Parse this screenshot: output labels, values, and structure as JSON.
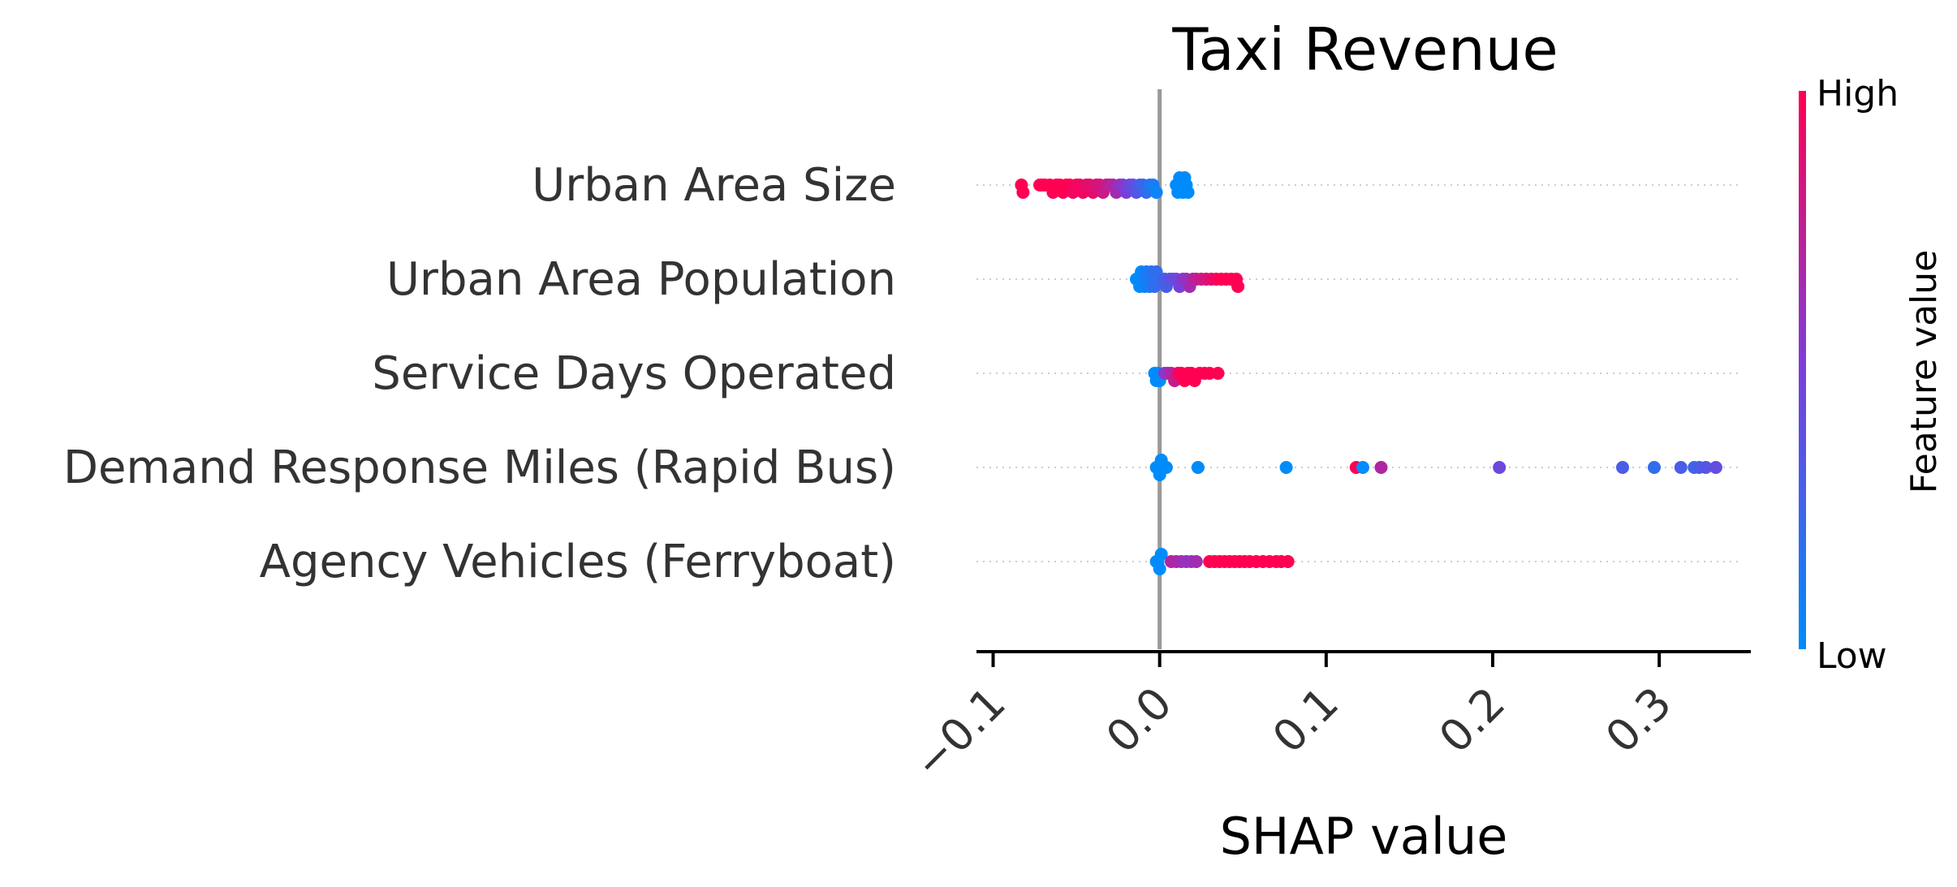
{
  "chart_data": {
    "type": "scatter",
    "subtype": "shap-beeswarm",
    "title": "Taxi Revenue",
    "xlabel": "SHAP value",
    "xlim": [
      -0.11,
      0.355
    ],
    "xticks": [
      -0.1,
      0.0,
      0.1,
      0.2,
      0.3
    ],
    "xtick_labels": [
      "−0.1",
      "0.0",
      "0.1",
      "0.2",
      "0.3"
    ],
    "colorbar": {
      "title": "Feature value",
      "high_label": "High",
      "low_label": "Low",
      "low_color": "#008bfb",
      "high_color": "#ff0052"
    },
    "zero_line_color": "#999999",
    "features": [
      {
        "name": "Urban Area Size",
        "points": [
          {
            "x": -0.083,
            "f": 1.0
          },
          {
            "x": -0.082,
            "f": 1.0
          },
          {
            "x": -0.072,
            "f": 1.0
          },
          {
            "x": -0.071,
            "f": 1.0
          },
          {
            "x": -0.069,
            "f": 1.0
          },
          {
            "x": -0.066,
            "f": 1.0
          },
          {
            "x": -0.064,
            "f": 1.0
          },
          {
            "x": -0.062,
            "f": 1.0
          },
          {
            "x": -0.06,
            "f": 1.0
          },
          {
            "x": -0.058,
            "f": 1.0
          },
          {
            "x": -0.056,
            "f": 1.0
          },
          {
            "x": -0.054,
            "f": 1.0
          },
          {
            "x": -0.052,
            "f": 0.95
          },
          {
            "x": -0.05,
            "f": 0.95
          },
          {
            "x": -0.048,
            "f": 0.95
          },
          {
            "x": -0.046,
            "f": 0.95
          },
          {
            "x": -0.044,
            "f": 0.9
          },
          {
            "x": -0.042,
            "f": 0.9
          },
          {
            "x": -0.04,
            "f": 0.9
          },
          {
            "x": -0.038,
            "f": 0.85
          },
          {
            "x": -0.036,
            "f": 0.85
          },
          {
            "x": -0.034,
            "f": 0.8
          },
          {
            "x": -0.032,
            "f": 0.8
          },
          {
            "x": -0.03,
            "f": 0.75
          },
          {
            "x": -0.028,
            "f": 0.7
          },
          {
            "x": -0.026,
            "f": 0.65
          },
          {
            "x": -0.024,
            "f": 0.6
          },
          {
            "x": -0.022,
            "f": 0.55
          },
          {
            "x": -0.02,
            "f": 0.5
          },
          {
            "x": -0.018,
            "f": 0.45
          },
          {
            "x": -0.016,
            "f": 0.4
          },
          {
            "x": -0.014,
            "f": 0.35
          },
          {
            "x": -0.012,
            "f": 0.3
          },
          {
            "x": -0.01,
            "f": 0.25
          },
          {
            "x": -0.008,
            "f": 0.2
          },
          {
            "x": -0.006,
            "f": 0.15
          },
          {
            "x": -0.004,
            "f": 0.1
          },
          {
            "x": -0.002,
            "f": 0.05
          },
          {
            "x": 0.01,
            "f": 0.0
          },
          {
            "x": 0.011,
            "f": 0.0
          },
          {
            "x": 0.012,
            "f": 0.0
          },
          {
            "x": 0.013,
            "f": 0.0
          },
          {
            "x": 0.014,
            "f": 0.0
          },
          {
            "x": 0.015,
            "f": 0.0
          },
          {
            "x": 0.016,
            "f": 0.0
          },
          {
            "x": 0.017,
            "f": 0.0
          }
        ]
      },
      {
        "name": "Urban Area Population",
        "points": [
          {
            "x": -0.014,
            "f": 0.0
          },
          {
            "x": -0.013,
            "f": 0.0
          },
          {
            "x": -0.012,
            "f": 0.0
          },
          {
            "x": -0.011,
            "f": 0.0
          },
          {
            "x": -0.01,
            "f": 0.05
          },
          {
            "x": -0.009,
            "f": 0.05
          },
          {
            "x": -0.008,
            "f": 0.1
          },
          {
            "x": -0.007,
            "f": 0.1
          },
          {
            "x": -0.006,
            "f": 0.1
          },
          {
            "x": -0.005,
            "f": 0.15
          },
          {
            "x": -0.004,
            "f": 0.15
          },
          {
            "x": -0.003,
            "f": 0.2
          },
          {
            "x": -0.002,
            "f": 0.2
          },
          {
            "x": 0.003,
            "f": 0.3
          },
          {
            "x": 0.004,
            "f": 0.3
          },
          {
            "x": 0.006,
            "f": 0.35
          },
          {
            "x": 0.008,
            "f": 0.4
          },
          {
            "x": 0.01,
            "f": 0.45
          },
          {
            "x": 0.012,
            "f": 0.5
          },
          {
            "x": 0.014,
            "f": 0.55
          },
          {
            "x": 0.016,
            "f": 0.6
          },
          {
            "x": 0.018,
            "f": 0.65
          },
          {
            "x": 0.02,
            "f": 0.7
          },
          {
            "x": 0.022,
            "f": 0.75
          },
          {
            "x": 0.025,
            "f": 0.8
          },
          {
            "x": 0.028,
            "f": 0.85
          },
          {
            "x": 0.031,
            "f": 0.9
          },
          {
            "x": 0.034,
            "f": 0.95
          },
          {
            "x": 0.037,
            "f": 1.0
          },
          {
            "x": 0.04,
            "f": 1.0
          },
          {
            "x": 0.043,
            "f": 1.0
          },
          {
            "x": 0.046,
            "f": 1.0
          },
          {
            "x": 0.047,
            "f": 1.0
          }
        ]
      },
      {
        "name": "Service Days Operated",
        "points": [
          {
            "x": -0.003,
            "f": 0.0
          },
          {
            "x": -0.002,
            "f": 0.0
          },
          {
            "x": -0.001,
            "f": 0.0
          },
          {
            "x": 0.0,
            "f": 0.0
          },
          {
            "x": 0.003,
            "f": 0.55
          },
          {
            "x": 0.005,
            "f": 0.6
          },
          {
            "x": 0.007,
            "f": 0.7
          },
          {
            "x": 0.009,
            "f": 0.8
          },
          {
            "x": 0.011,
            "f": 0.9
          },
          {
            "x": 0.013,
            "f": 1.0
          },
          {
            "x": 0.015,
            "f": 1.0
          },
          {
            "x": 0.017,
            "f": 1.0
          },
          {
            "x": 0.019,
            "f": 1.0
          },
          {
            "x": 0.021,
            "f": 1.0
          },
          {
            "x": 0.024,
            "f": 1.0
          },
          {
            "x": 0.027,
            "f": 1.0
          },
          {
            "x": 0.03,
            "f": 1.0
          },
          {
            "x": 0.035,
            "f": 1.0
          }
        ]
      },
      {
        "name": "Demand Response Miles (Rapid Bus)",
        "points": [
          {
            "x": -0.002,
            "f": 0.0
          },
          {
            "x": -0.001,
            "f": 0.0
          },
          {
            "x": 0.0,
            "f": 0.0
          },
          {
            "x": 0.001,
            "f": 0.0
          },
          {
            "x": 0.004,
            "f": 0.0
          },
          {
            "x": 0.023,
            "f": 0.0
          },
          {
            "x": 0.076,
            "f": 0.0
          },
          {
            "x": 0.118,
            "f": 1.0
          },
          {
            "x": 0.122,
            "f": 0.0
          },
          {
            "x": 0.133,
            "f": 0.7
          },
          {
            "x": 0.204,
            "f": 0.45
          },
          {
            "x": 0.278,
            "f": 0.3
          },
          {
            "x": 0.297,
            "f": 0.2
          },
          {
            "x": 0.313,
            "f": 0.3
          },
          {
            "x": 0.321,
            "f": 0.25
          },
          {
            "x": 0.324,
            "f": 0.3
          },
          {
            "x": 0.328,
            "f": 0.35
          },
          {
            "x": 0.334,
            "f": 0.4
          }
        ]
      },
      {
        "name": "Agency Vehicles (Ferryboat)",
        "points": [
          {
            "x": -0.002,
            "f": 0.0
          },
          {
            "x": -0.001,
            "f": 0.0
          },
          {
            "x": 0.0,
            "f": 0.0
          },
          {
            "x": 0.001,
            "f": 0.0
          },
          {
            "x": 0.007,
            "f": 0.7
          },
          {
            "x": 0.01,
            "f": 0.7
          },
          {
            "x": 0.013,
            "f": 0.65
          },
          {
            "x": 0.016,
            "f": 0.6
          },
          {
            "x": 0.019,
            "f": 0.6
          },
          {
            "x": 0.022,
            "f": 0.65
          },
          {
            "x": 0.03,
            "f": 1.0
          },
          {
            "x": 0.033,
            "f": 1.0
          },
          {
            "x": 0.036,
            "f": 1.0
          },
          {
            "x": 0.039,
            "f": 1.0
          },
          {
            "x": 0.042,
            "f": 1.0
          },
          {
            "x": 0.045,
            "f": 1.0
          },
          {
            "x": 0.048,
            "f": 1.0
          },
          {
            "x": 0.051,
            "f": 1.0
          },
          {
            "x": 0.054,
            "f": 1.0
          },
          {
            "x": 0.058,
            "f": 1.0
          },
          {
            "x": 0.062,
            "f": 1.0
          },
          {
            "x": 0.066,
            "f": 1.0
          },
          {
            "x": 0.07,
            "f": 1.0
          },
          {
            "x": 0.073,
            "f": 1.0
          },
          {
            "x": 0.077,
            "f": 1.0
          }
        ]
      }
    ]
  }
}
